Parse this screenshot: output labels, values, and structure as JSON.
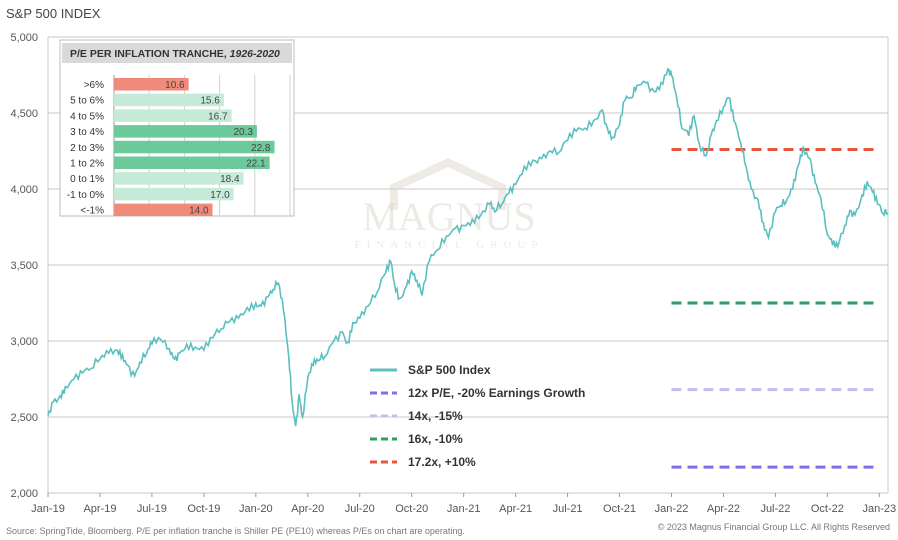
{
  "title": "S&P 500 INDEX",
  "source_note": "Source: SpringTide, Bloomberg. P/E per inflation tranche is Shiller PE (PE10) whereas P/Es on chart are operating.",
  "copyright": "© 2023 Magnus Financial Group LLC. All Rights Reserved",
  "watermark": {
    "name": "MAGNUS",
    "sub": "FINANCIAL GROUP"
  },
  "colors": {
    "index": "#5bbfbf",
    "p12": "#7b72e9",
    "p14": "#c3bdf0",
    "p16": "#2e9e63",
    "p172": "#e8553c",
    "inset_green_dark": "#6cc99a",
    "inset_green_light": "#c5ebd8",
    "inset_red": "#f08a7a"
  },
  "chart_data": {
    "type": "line",
    "title": "S&P 500 INDEX",
    "ylim": [
      2000,
      5000
    ],
    "yticks": [
      2000,
      2500,
      3000,
      3500,
      4000,
      4500,
      5000
    ],
    "ytick_labels": [
      "2,000",
      "2,500",
      "3,000",
      "3,500",
      "4,000",
      "4,500",
      "5,000"
    ],
    "xlim": [
      0,
      48.5
    ],
    "xticks": [
      {
        "t": 0,
        "label": "Jan-19"
      },
      {
        "t": 3,
        "label": "Apr-19"
      },
      {
        "t": 6,
        "label": "Jul-19"
      },
      {
        "t": 9,
        "label": "Oct-19"
      },
      {
        "t": 12,
        "label": "Jan-20"
      },
      {
        "t": 15,
        "label": "Apr-20"
      },
      {
        "t": 18,
        "label": "Jul-20"
      },
      {
        "t": 21,
        "label": "Oct-20"
      },
      {
        "t": 24,
        "label": "Jan-21"
      },
      {
        "t": 27,
        "label": "Apr-21"
      },
      {
        "t": 30,
        "label": "Jul-21"
      },
      {
        "t": 33,
        "label": "Oct-21"
      },
      {
        "t": 36,
        "label": "Jan-22"
      },
      {
        "t": 39,
        "label": "Apr-22"
      },
      {
        "t": 42,
        "label": "Jul-22"
      },
      {
        "t": 45,
        "label": "Oct-22"
      },
      {
        "t": 48,
        "label": "Jan-23"
      }
    ],
    "series": [
      {
        "name": "S&P 500 Index",
        "style": "solid",
        "points": [
          [
            0,
            2510
          ],
          [
            0.3,
            2600
          ],
          [
            0.7,
            2640
          ],
          [
            1,
            2700
          ],
          [
            1.5,
            2750
          ],
          [
            2,
            2790
          ],
          [
            2.5,
            2820
          ],
          [
            3,
            2880
          ],
          [
            3.5,
            2920
          ],
          [
            4,
            2940
          ],
          [
            4.3,
            2910
          ],
          [
            4.6,
            2840
          ],
          [
            5,
            2770
          ],
          [
            5.3,
            2860
          ],
          [
            5.7,
            2920
          ],
          [
            6,
            2980
          ],
          [
            6.5,
            3010
          ],
          [
            7,
            2950
          ],
          [
            7.3,
            2880
          ],
          [
            7.6,
            2920
          ],
          [
            8,
            2980
          ],
          [
            8.5,
            2960
          ],
          [
            9,
            2940
          ],
          [
            9.5,
            3020
          ],
          [
            10,
            3080
          ],
          [
            10.5,
            3130
          ],
          [
            11,
            3150
          ],
          [
            11.5,
            3220
          ],
          [
            12,
            3250
          ],
          [
            12.3,
            3230
          ],
          [
            12.7,
            3290
          ],
          [
            13,
            3340
          ],
          [
            13.3,
            3380
          ],
          [
            13.6,
            3200
          ],
          [
            13.9,
            2900
          ],
          [
            14.1,
            2600
          ],
          [
            14.3,
            2440
          ],
          [
            14.5,
            2650
          ],
          [
            14.7,
            2500
          ],
          [
            15,
            2760
          ],
          [
            15.3,
            2840
          ],
          [
            15.6,
            2870
          ],
          [
            16,
            2900
          ],
          [
            16.5,
            3000
          ],
          [
            17,
            3060
          ],
          [
            17.3,
            2990
          ],
          [
            17.6,
            3120
          ],
          [
            18,
            3150
          ],
          [
            18.5,
            3230
          ],
          [
            19,
            3320
          ],
          [
            19.5,
            3450
          ],
          [
            19.8,
            3520
          ],
          [
            20,
            3380
          ],
          [
            20.3,
            3280
          ],
          [
            20.7,
            3360
          ],
          [
            21,
            3460
          ],
          [
            21.3,
            3400
          ],
          [
            21.6,
            3300
          ],
          [
            22,
            3520
          ],
          [
            22.5,
            3600
          ],
          [
            23,
            3690
          ],
          [
            23.5,
            3740
          ],
          [
            24,
            3760
          ],
          [
            24.5,
            3800
          ],
          [
            25,
            3830
          ],
          [
            25.5,
            3900
          ],
          [
            25.8,
            3850
          ],
          [
            26.2,
            3900
          ],
          [
            26.6,
            3970
          ],
          [
            27,
            4030
          ],
          [
            27.5,
            4150
          ],
          [
            28,
            4190
          ],
          [
            28.5,
            4200
          ],
          [
            29,
            4250
          ],
          [
            29.5,
            4240
          ],
          [
            30,
            4320
          ],
          [
            30.5,
            4380
          ],
          [
            31,
            4400
          ],
          [
            31.5,
            4450
          ],
          [
            32,
            4520
          ],
          [
            32.3,
            4400
          ],
          [
            32.6,
            4340
          ],
          [
            33,
            4420
          ],
          [
            33.3,
            4580
          ],
          [
            33.7,
            4600
          ],
          [
            34,
            4680
          ],
          [
            34.5,
            4700
          ],
          [
            35,
            4640
          ],
          [
            35.4,
            4700
          ],
          [
            35.8,
            4790
          ],
          [
            36,
            4750
          ],
          [
            36.3,
            4600
          ],
          [
            36.6,
            4400
          ],
          [
            37,
            4350
          ],
          [
            37.3,
            4480
          ],
          [
            37.6,
            4300
          ],
          [
            38,
            4220
          ],
          [
            38.3,
            4360
          ],
          [
            38.6,
            4450
          ],
          [
            39,
            4540
          ],
          [
            39.3,
            4600
          ],
          [
            39.6,
            4450
          ],
          [
            40,
            4300
          ],
          [
            40.3,
            4150
          ],
          [
            40.6,
            4000
          ],
          [
            41,
            3930
          ],
          [
            41.3,
            3780
          ],
          [
            41.6,
            3680
          ],
          [
            42,
            3850
          ],
          [
            42.3,
            3890
          ],
          [
            42.6,
            3910
          ],
          [
            43,
            4000
          ],
          [
            43.3,
            4150
          ],
          [
            43.6,
            4280
          ],
          [
            44,
            4200
          ],
          [
            44.3,
            4040
          ],
          [
            44.6,
            3950
          ],
          [
            45,
            3700
          ],
          [
            45.3,
            3630
          ],
          [
            45.6,
            3620
          ],
          [
            46,
            3760
          ],
          [
            46.3,
            3860
          ],
          [
            46.6,
            3830
          ],
          [
            47,
            3960
          ],
          [
            47.3,
            4050
          ],
          [
            47.6,
            3980
          ],
          [
            47.9,
            3900
          ],
          [
            48.2,
            3840
          ],
          [
            48.5,
            3840
          ]
        ]
      },
      {
        "name": "12x P/E, -20% Earnings Growth",
        "style": "dashed",
        "value": 2170,
        "x": [
          36,
          48
        ]
      },
      {
        "name": "14x, -15%",
        "style": "dashed",
        "value": 2680,
        "x": [
          36,
          48
        ]
      },
      {
        "name": "16x, -10%",
        "style": "dashed",
        "value": 3250,
        "x": [
          36,
          48
        ]
      },
      {
        "name": "17.2x, +10%",
        "style": "dashed",
        "value": 4260,
        "x": [
          36,
          48
        ]
      }
    ],
    "legend": {
      "placement": "bottom-center",
      "items": [
        {
          "label": "S&P 500 Index",
          "color_key": "index"
        },
        {
          "label": "12x P/E, -20% Earnings Growth",
          "color_key": "p12"
        },
        {
          "label": "14x, -15%",
          "color_key": "p14"
        },
        {
          "label": "16x, -10%",
          "color_key": "p16"
        },
        {
          "label": "17.2x, +10%",
          "color_key": "p172"
        }
      ]
    },
    "inset": {
      "type": "bar",
      "orientation": "horizontal",
      "title": "P/E PER INFLATION TRANCHE,",
      "title_italic": "1926-2020",
      "xlim": [
        0,
        25
      ],
      "categories": [
        ">6%",
        "5 to 6%",
        "4 to 5%",
        "3 to 4%",
        "2 to 3%",
        "1 to 2%",
        "0 to 1%",
        "-1 to 0%",
        "<-1%"
      ],
      "values": [
        10.6,
        15.6,
        16.7,
        20.3,
        22.8,
        22.1,
        18.4,
        17.0,
        14.0
      ],
      "value_labels": [
        "10.6",
        "15.6",
        "16.7",
        "20.3",
        "22.8",
        "22.1",
        "18.4",
        "17.0",
        "14.0"
      ],
      "bar_colors": [
        "inset_red",
        "inset_green_light",
        "inset_green_light",
        "inset_green_dark",
        "inset_green_dark",
        "inset_green_dark",
        "inset_green_light",
        "inset_green_light",
        "inset_red"
      ]
    }
  }
}
